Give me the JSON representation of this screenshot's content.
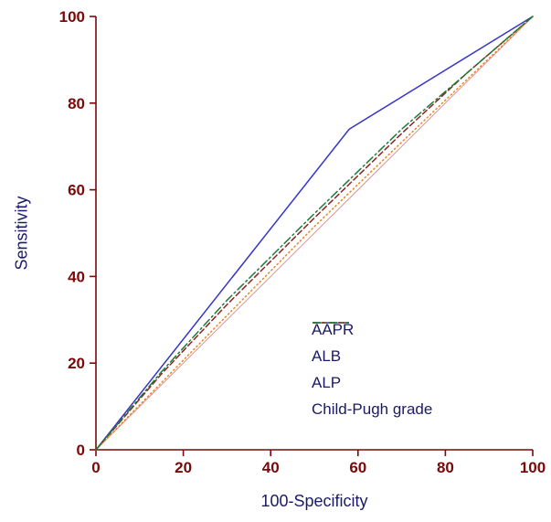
{
  "chart_data": {
    "type": "line",
    "title": "",
    "xlabel": "100-Specificity",
    "ylabel": "Sensitivity",
    "xlim": [
      0,
      100
    ],
    "ylim": [
      0,
      100
    ],
    "xticks": [
      0,
      20,
      40,
      60,
      80,
      100
    ],
    "yticks": [
      0,
      20,
      40,
      60,
      80,
      100
    ],
    "grid": false,
    "legend_position": "inside-lower-right",
    "axis_color": "#7a0909",
    "tick_label_color": "#7a0909",
    "axis_title_color": "#1a1a66",
    "background_color": "#ffffff",
    "reference_line": {
      "name": "chance-diagonal",
      "color": "#d98c8c",
      "style": "solid",
      "points": [
        [
          0,
          0
        ],
        [
          100,
          100
        ]
      ]
    },
    "series": [
      {
        "name": "AAPR",
        "color": "#3535c8",
        "style": "solid",
        "points": [
          [
            0,
            0
          ],
          [
            58,
            74
          ],
          [
            100,
            100
          ]
        ]
      },
      {
        "name": "ALB",
        "color": "#8b2323",
        "style": "dashed",
        "points": [
          [
            0,
            0
          ],
          [
            15,
            17.5
          ],
          [
            30,
            33.5
          ],
          [
            50,
            53.5
          ],
          [
            70,
            73
          ],
          [
            85,
            87
          ],
          [
            100,
            100
          ]
        ]
      },
      {
        "name": "ALP",
        "color": "#f08020",
        "style": "dotted",
        "points": [
          [
            0,
            0
          ],
          [
            30,
            31
          ],
          [
            50,
            51.5
          ],
          [
            70,
            71
          ],
          [
            100,
            100
          ]
        ]
      },
      {
        "name": "Child-Pugh grade",
        "color": "#1f7a38",
        "style": "dashdot",
        "points": [
          [
            0,
            0
          ],
          [
            15,
            18
          ],
          [
            30,
            34.5
          ],
          [
            50,
            54.5
          ],
          [
            70,
            74
          ],
          [
            100,
            100
          ]
        ]
      }
    ]
  }
}
